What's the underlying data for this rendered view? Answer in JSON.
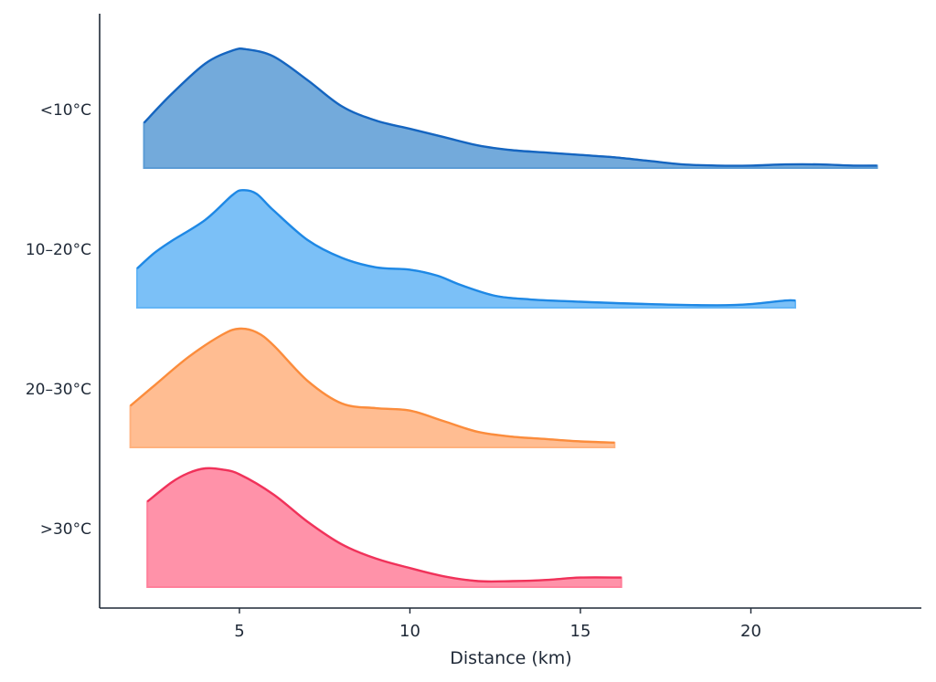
{
  "chart_data": {
    "type": "ridgeline",
    "title": "",
    "xlabel": "Distance (km)",
    "ylabel": "",
    "xlim": [
      0.9,
      25.0
    ],
    "xticks": [
      5,
      10,
      15,
      20
    ],
    "xtick_labels": [
      "5",
      "10",
      "15",
      "20"
    ],
    "grid": false,
    "legend": "none",
    "series": [
      {
        "name": "<10°C",
        "line_color": "#1565c0",
        "fill_color": "#5b9bd5",
        "x": [
          2.2,
          3.0,
          4.0,
          4.8,
          5.2,
          6.0,
          7.0,
          8.0,
          9.0,
          10.0,
          11.0,
          12.0,
          13.0,
          14.0,
          15.0,
          16.0,
          17.0,
          18.0,
          19.0,
          20.0,
          21.0,
          22.0,
          23.0,
          23.7
        ],
        "y": [
          0.38,
          0.62,
          0.88,
          0.99,
          1.0,
          0.94,
          0.74,
          0.52,
          0.4,
          0.33,
          0.26,
          0.19,
          0.15,
          0.13,
          0.11,
          0.09,
          0.06,
          0.03,
          0.02,
          0.02,
          0.03,
          0.03,
          0.02,
          0.02
        ]
      },
      {
        "name": "10–20°C",
        "line_color": "#1e88e5",
        "fill_color": "#64b5f6",
        "x": [
          2.0,
          2.5,
          3.0,
          4.0,
          4.8,
          5.1,
          5.5,
          6.0,
          7.0,
          8.0,
          9.0,
          10.0,
          10.8,
          11.5,
          12.5,
          13.5,
          15.0,
          17.0,
          19.0,
          20.0,
          21.0,
          21.3
        ],
        "y": [
          0.33,
          0.46,
          0.56,
          0.74,
          0.95,
          0.99,
          0.96,
          0.82,
          0.57,
          0.42,
          0.34,
          0.32,
          0.27,
          0.19,
          0.1,
          0.07,
          0.05,
          0.03,
          0.02,
          0.03,
          0.06,
          0.06
        ]
      },
      {
        "name": "20–30°C",
        "line_color": "#fb8c3c",
        "fill_color": "#ffb27f",
        "x": [
          1.8,
          2.5,
          3.5,
          4.5,
          5.0,
          5.5,
          6.0,
          7.0,
          8.0,
          9.0,
          10.0,
          11.0,
          12.0,
          13.0,
          14.0,
          15.0,
          16.0
        ],
        "y": [
          0.35,
          0.52,
          0.76,
          0.95,
          1.0,
          0.97,
          0.86,
          0.56,
          0.37,
          0.33,
          0.31,
          0.22,
          0.13,
          0.09,
          0.07,
          0.05,
          0.04
        ]
      },
      {
        "name": ">30°C",
        "line_color": "#f0325a",
        "fill_color": "#ff7f9a",
        "x": [
          2.3,
          3.0,
          3.5,
          4.0,
          4.5,
          5.0,
          6.0,
          7.0,
          8.0,
          9.0,
          10.0,
          11.0,
          12.0,
          13.0,
          14.0,
          15.0,
          16.2
        ],
        "y": [
          0.72,
          0.88,
          0.96,
          1.0,
          0.99,
          0.95,
          0.78,
          0.55,
          0.36,
          0.24,
          0.16,
          0.09,
          0.05,
          0.05,
          0.06,
          0.08,
          0.08
        ]
      }
    ]
  }
}
